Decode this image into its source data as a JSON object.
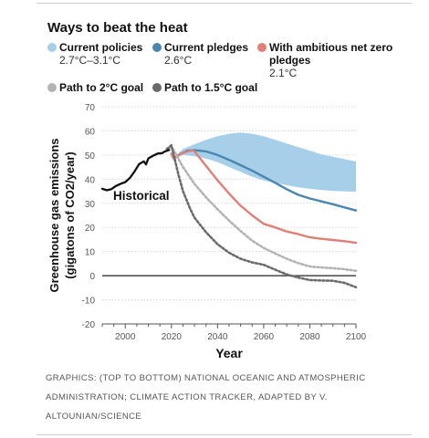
{
  "title": "Ways to beat the heat",
  "legend": [
    {
      "name": "Current policies",
      "sub": "2.7°C–3.1°C",
      "color": "#a6d0ea",
      "style": "band"
    },
    {
      "name": "Current pledges",
      "sub": "2.6°C",
      "color": "#4a86ad",
      "style": "solid"
    },
    {
      "name": "With ambitious net zero pledges",
      "sub": "2.1°C",
      "color": "#e07f76",
      "style": "solid"
    },
    {
      "name": "Path to 2°C goal",
      "sub": "",
      "color": "#b3b3b3",
      "style": "dotted"
    },
    {
      "name": "Path to 1.5°C goal",
      "sub": "",
      "color": "#6b6b6b",
      "style": "dotted"
    }
  ],
  "credit": "Graphics: (top to bottom) National Oceanic and Atmospheric Administration; Climate Action Tracker, adapted by V. Altounian/Science",
  "chart_data": {
    "type": "line",
    "xlabel": "Year",
    "ylabel_line1": "Greenhouse gas emissions",
    "ylabel_line2": "(gigatons of CO2/year)",
    "xlim": [
      1990,
      2100
    ],
    "ylim": [
      -20,
      70
    ],
    "xticks": [
      2000,
      2020,
      2040,
      2060,
      2080,
      2100
    ],
    "yticks": [
      -20,
      -10,
      0,
      10,
      20,
      30,
      40,
      50,
      60,
      70
    ],
    "annotation": "Historical",
    "historical": {
      "x": [
        1990,
        1992,
        1994,
        1996,
        1998,
        2000,
        2002,
        2004,
        2006,
        2008,
        2009,
        2010,
        2012,
        2014,
        2016,
        2017,
        2019
      ],
      "y": [
        36,
        35.4,
        35.9,
        37.2,
        38.1,
        38.8,
        40.5,
        43.2,
        46.2,
        47.4,
        46.1,
        48.6,
        49.7,
        50.6,
        50.8,
        51.4,
        52.1
      ]
    },
    "series": [
      {
        "name": "Current policies",
        "type": "band",
        "x": [
          2020,
          2021,
          2025,
          2030,
          2035,
          2040,
          2045,
          2050,
          2055,
          2060,
          2065,
          2070,
          2075,
          2080,
          2085,
          2090,
          2095,
          2100
        ],
        "upper": [
          52.5,
          49,
          52.5,
          54.5,
          56.3,
          57.8,
          58.8,
          59.3,
          58.8,
          57.8,
          56.3,
          54.8,
          53.3,
          51.8,
          50.3,
          49.3,
          48.3,
          47.3
        ],
        "lower": [
          52,
          48.5,
          50,
          49.5,
          48.5,
          47,
          45,
          43,
          41,
          39.5,
          38.5,
          37.5,
          36.6,
          36,
          35.5,
          35.1,
          34.9,
          34.8
        ]
      },
      {
        "name": "Current pledges",
        "x": [
          2020,
          2021,
          2024,
          2027,
          2030,
          2035,
          2040,
          2045,
          2050,
          2055,
          2060,
          2065,
          2070,
          2075,
          2080,
          2085,
          2090,
          2095,
          2100
        ],
        "y": [
          50.5,
          48.5,
          50.5,
          51.8,
          52,
          51.5,
          50,
          48,
          45.8,
          43.5,
          41,
          38.5,
          35.8,
          33.5,
          32,
          30.8,
          29.6,
          28.3,
          27
        ]
      },
      {
        "name": "With ambitious net zero pledges",
        "x": [
          2020,
          2021,
          2024,
          2027,
          2029,
          2030,
          2035,
          2040,
          2045,
          2050,
          2055,
          2060,
          2065,
          2070,
          2075,
          2080,
          2085,
          2090,
          2095,
          2100
        ],
        "y": [
          50.5,
          48.5,
          50.5,
          51.5,
          52,
          51.5,
          45.5,
          39.5,
          34,
          29,
          25,
          21.5,
          20,
          18.3,
          17.2,
          15.9,
          15.3,
          14.8,
          14.3,
          13.6
        ]
      },
      {
        "name": "Path to 2°C goal",
        "x": [
          2018,
          2020,
          2021,
          2023,
          2025,
          2030,
          2035,
          2040,
          2045,
          2050,
          2055,
          2060,
          2065,
          2070,
          2075,
          2080,
          2085,
          2090,
          2095,
          2100
        ],
        "y": [
          52.5,
          53.5,
          52,
          48.5,
          45,
          38,
          32.5,
          27.5,
          22.8,
          18.5,
          14.5,
          11.5,
          9.2,
          7,
          5.2,
          3.8,
          3.4,
          3.1,
          2.7,
          2
        ]
      },
      {
        "name": "Path to 1.5°C goal",
        "x": [
          2018,
          2020,
          2021,
          2023,
          2025,
          2028,
          2030,
          2035,
          2040,
          2045,
          2050,
          2055,
          2060,
          2065,
          2070,
          2075,
          2080,
          2085,
          2090,
          2095,
          2100
        ],
        "y": [
          52.5,
          54,
          50,
          42,
          35,
          28,
          24,
          18,
          13,
          9.5,
          7,
          5.5,
          4.5,
          2.5,
          0.5,
          -0.8,
          -1.8,
          -2,
          -2.1,
          -3,
          -4.8
        ]
      }
    ]
  }
}
